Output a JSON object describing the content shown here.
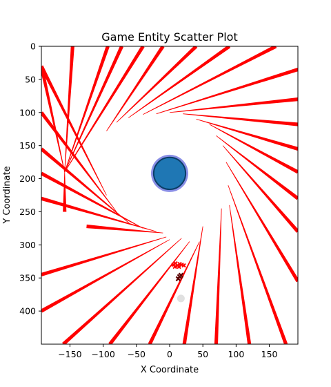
{
  "chart_data": {
    "type": "scatter",
    "title": "Game Entity Scatter Plot",
    "xlabel": "X Coordinate",
    "ylabel": "Y Coordinate",
    "xlim": [
      -193,
      193
    ],
    "ylim": [
      450,
      0
    ],
    "y_inverted": true,
    "grid": false,
    "legend": "none",
    "xticks": [
      -150,
      -100,
      -50,
      0,
      50,
      100,
      150
    ],
    "xtick_labels": [
      "−150",
      "−100",
      "−50",
      "0",
      "50",
      "100",
      "150"
    ],
    "yticks": [
      0,
      50,
      100,
      150,
      200,
      250,
      300,
      350,
      400
    ],
    "ytick_labels": [
      "0",
      "50",
      "100",
      "150",
      "200",
      "250",
      "300",
      "350",
      "400"
    ],
    "colors": {
      "rays": "#ff0000",
      "central_entity_fill": "#1f77b4",
      "central_entity_edge": "#0b3d66",
      "central_entity_halo": "#8a8fe6",
      "markers": "#ff0000",
      "dark_marker": "#5c0000",
      "faint_marker": "#e0e0e0"
    },
    "central_entity": {
      "x": 0,
      "y": 192,
      "radius": 24,
      "halo_radius": 28
    },
    "rays": [
      {
        "x1": -158,
        "y1": 190,
        "x2": -193,
        "y2": 30
      },
      {
        "x1": -158,
        "y1": 190,
        "x2": -158,
        "y2": 250
      },
      {
        "x1": -158,
        "y1": 190,
        "x2": -146,
        "y2": 0
      },
      {
        "x1": -158,
        "y1": 190,
        "x2": -93,
        "y2": 0
      },
      {
        "x1": -158,
        "y1": 190,
        "x2": -72,
        "y2": 0
      },
      {
        "x1": -158,
        "y1": 190,
        "x2": -40,
        "y2": 0
      },
      {
        "x1": -95,
        "y1": 128,
        "x2": -10,
        "y2": 0
      },
      {
        "x1": -80,
        "y1": 115,
        "x2": 40,
        "y2": 0
      },
      {
        "x1": -62,
        "y1": 108,
        "x2": 90,
        "y2": 0
      },
      {
        "x1": -40,
        "y1": 103,
        "x2": 160,
        "y2": 0
      },
      {
        "x1": -20,
        "y1": 102,
        "x2": 193,
        "y2": 35
      },
      {
        "x1": 0,
        "y1": 100,
        "x2": 193,
        "y2": 80
      },
      {
        "x1": 20,
        "y1": 102,
        "x2": 193,
        "y2": 118
      },
      {
        "x1": 40,
        "y1": 110,
        "x2": 193,
        "y2": 155
      },
      {
        "x1": 60,
        "y1": 118,
        "x2": 193,
        "y2": 190
      },
      {
        "x1": 70,
        "y1": 135,
        "x2": 193,
        "y2": 230
      },
      {
        "x1": 80,
        "y1": 150,
        "x2": 193,
        "y2": 280
      },
      {
        "x1": 85,
        "y1": 175,
        "x2": 193,
        "y2": 355
      },
      {
        "x1": 88,
        "y1": 210,
        "x2": 175,
        "y2": 450
      },
      {
        "x1": 90,
        "y1": 240,
        "x2": 120,
        "y2": 450
      },
      {
        "x1": 78,
        "y1": 245,
        "x2": 70,
        "y2": 450
      },
      {
        "x1": 50,
        "y1": 272,
        "x2": 22,
        "y2": 450
      },
      {
        "x1": 45,
        "y1": 295,
        "x2": -30,
        "y2": 450
      },
      {
        "x1": 30,
        "y1": 295,
        "x2": -90,
        "y2": 450
      },
      {
        "x1": 18,
        "y1": 290,
        "x2": -160,
        "y2": 450
      },
      {
        "x1": 0,
        "y1": 292,
        "x2": -193,
        "y2": 400
      },
      {
        "x1": -5,
        "y1": 288,
        "x2": -193,
        "y2": 345
      },
      {
        "x1": -10,
        "y1": 282,
        "x2": -125,
        "y2": 272
      },
      {
        "x1": -20,
        "y1": 280,
        "x2": -193,
        "y2": 230
      },
      {
        "x1": -40,
        "y1": 275,
        "x2": -193,
        "y2": 192
      },
      {
        "x1": -60,
        "y1": 268,
        "x2": -193,
        "y2": 155
      },
      {
        "x1": -80,
        "y1": 250,
        "x2": -193,
        "y2": 100
      },
      {
        "x1": -95,
        "y1": 225,
        "x2": -193,
        "y2": 30
      }
    ],
    "markers": [
      {
        "x": 12,
        "y": 330,
        "kind": "cluster"
      },
      {
        "x": 15,
        "y": 348,
        "kind": "dark"
      },
      {
        "x": 17,
        "y": 381,
        "kind": "faint"
      }
    ]
  }
}
